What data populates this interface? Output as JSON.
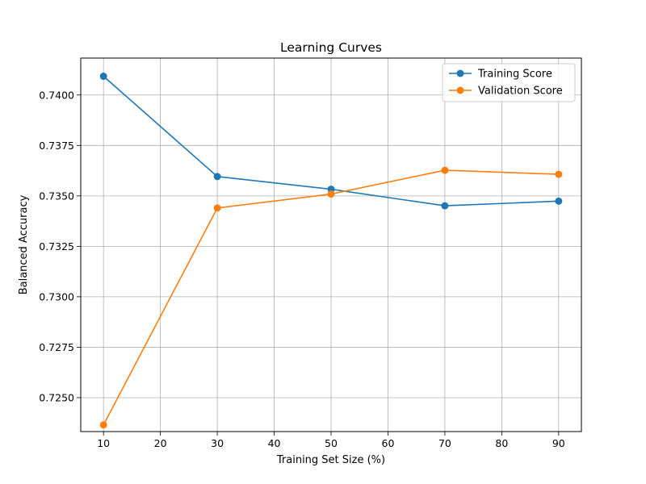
{
  "chart_data": {
    "type": "line",
    "title": "Learning Curves",
    "xlabel": "Training Set Size (%)",
    "ylabel": "Balanced Accuracy",
    "x": [
      10,
      30,
      50,
      70,
      90
    ],
    "xticks": [
      "10",
      "20",
      "30",
      "40",
      "50",
      "60",
      "70",
      "80",
      "90"
    ],
    "yticks": [
      "0.7250",
      "0.7275",
      "0.7300",
      "0.7325",
      "0.7350",
      "0.7375",
      "0.7400"
    ],
    "xlim": [
      6,
      94
    ],
    "ylim": [
      0.72332,
      0.74183
    ],
    "grid": true,
    "legend_position": "top-right",
    "series": [
      {
        "name": "Training Score",
        "color": "#1f77b4",
        "marker": "circle",
        "values": [
          0.74093,
          0.73596,
          0.73533,
          0.73451,
          0.73474
        ]
      },
      {
        "name": "Validation Score",
        "color": "#ff7f0e",
        "marker": "circle",
        "values": [
          0.72365,
          0.7344,
          0.73509,
          0.73627,
          0.73607
        ]
      }
    ]
  }
}
